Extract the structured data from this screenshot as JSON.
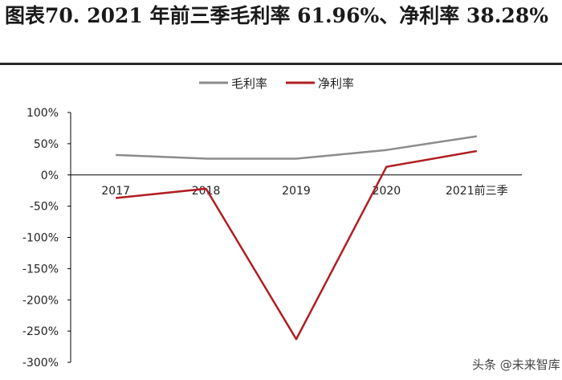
{
  "figure_title": "图表70. 2021 年前三季毛利率 61.96%、净利率 38.28%",
  "watermark": "头条 @未来智库",
  "colors": {
    "gross_margin": "#8c8c8c",
    "net_margin": "#b01e23",
    "axis": "#000000",
    "title_rule": "#2a2a2a"
  },
  "chart_data": {
    "type": "line",
    "categories": [
      "2017",
      "2018",
      "2019",
      "2020",
      "2021前三季"
    ],
    "series": [
      {
        "name": "毛利率",
        "values": [
          32,
          26,
          26,
          40,
          61.96
        ]
      },
      {
        "name": "净利率",
        "values": [
          -37,
          -22,
          -263,
          13,
          38.28
        ]
      }
    ],
    "ylim": [
      -300,
      100
    ],
    "yticks": [
      100,
      50,
      0,
      -50,
      -100,
      -150,
      -200,
      -250,
      -300
    ],
    "ytick_labels": [
      "100%",
      "50%",
      "0%",
      "-50%",
      "-100%",
      "-150%",
      "-200%",
      "-250%",
      "-300%"
    ],
    "legend_position": "top-center",
    "grid": false
  }
}
